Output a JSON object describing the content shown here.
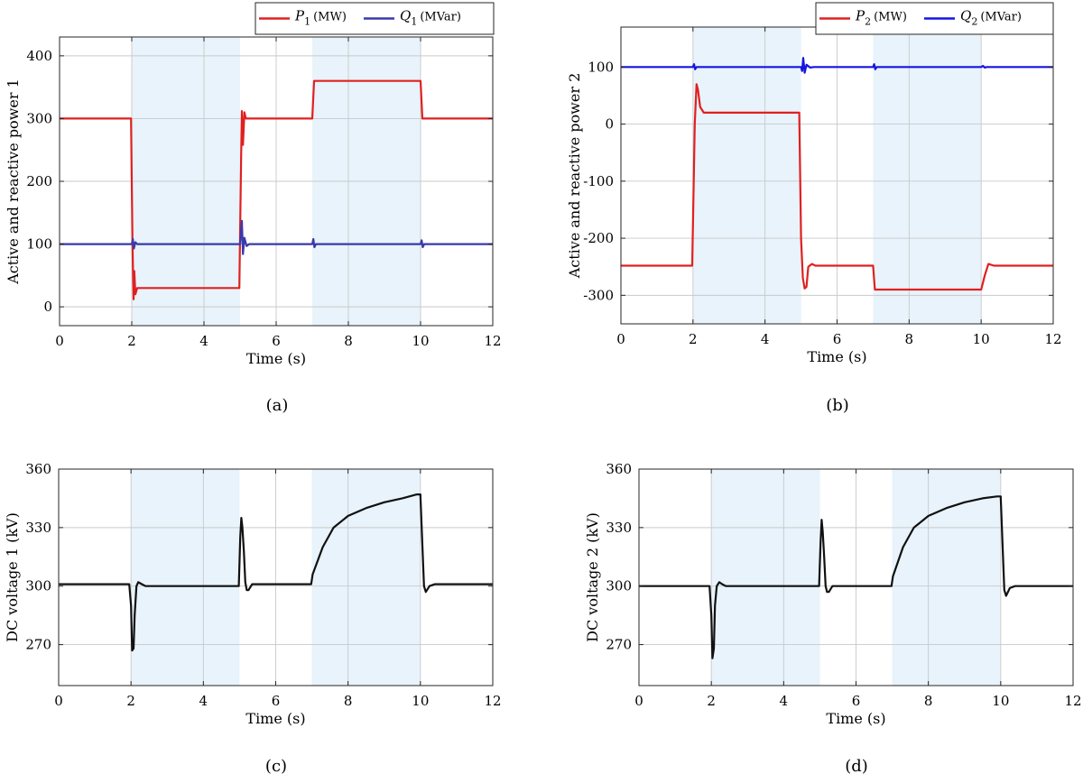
{
  "figure": {
    "captions": [
      "(a)",
      "(b)",
      "(c)",
      "(d)"
    ]
  },
  "chart_data": [
    {
      "id": "a",
      "type": "line",
      "caption": "(a)",
      "xlabel": "Time (s)",
      "ylabel": "Active and reactive power 1",
      "xlim": [
        0,
        12
      ],
      "ylim": [
        -30,
        430
      ],
      "xticks": [
        0,
        2,
        4,
        6,
        8,
        10,
        12
      ],
      "yticks": [
        0,
        100,
        200,
        300,
        400
      ],
      "grid": true,
      "legend": "top-right",
      "shaded_intervals": [
        [
          2,
          5
        ],
        [
          7,
          10
        ]
      ],
      "series": [
        {
          "name": "P1 (MW)",
          "legend_main": "P",
          "legend_sub": "1",
          "legend_unit": "(MW)",
          "color": "#e02020",
          "points": [
            [
              0,
              300
            ],
            [
              1.98,
              300
            ],
            [
              2.02,
              100
            ],
            [
              2.05,
              12
            ],
            [
              2.07,
              57
            ],
            [
              2.1,
              20
            ],
            [
              2.15,
              30
            ],
            [
              4.98,
              30
            ],
            [
              5.03,
              240
            ],
            [
              5.05,
              312
            ],
            [
              5.08,
              258
            ],
            [
              5.12,
              310
            ],
            [
              5.16,
              300
            ],
            [
              7,
              300
            ],
            [
              7.05,
              360
            ],
            [
              10,
              360
            ],
            [
              10.05,
              300
            ],
            [
              12,
              300
            ]
          ]
        },
        {
          "name": "Q1 (MVar)",
          "legend_main": "Q",
          "legend_sub": "1",
          "legend_unit": "(MVar)",
          "color": "#3a3aaa",
          "points": [
            [
              0,
              100
            ],
            [
              2,
              100
            ],
            [
              2.03,
              108
            ],
            [
              2.06,
              93
            ],
            [
              2.1,
              103
            ],
            [
              2.15,
              100
            ],
            [
              5,
              100
            ],
            [
              5.02,
              115
            ],
            [
              5.05,
              137
            ],
            [
              5.08,
              84
            ],
            [
              5.12,
              110
            ],
            [
              5.18,
              97
            ],
            [
              5.25,
              100
            ],
            [
              7,
              100
            ],
            [
              7.03,
              108
            ],
            [
              7.06,
              95
            ],
            [
              7.1,
              100
            ],
            [
              10,
              100
            ],
            [
              10.03,
              106
            ],
            [
              10.06,
              95
            ],
            [
              10.1,
              100
            ],
            [
              12,
              100
            ]
          ]
        }
      ]
    },
    {
      "id": "b",
      "type": "line",
      "caption": "(b)",
      "xlabel": "Time (s)",
      "ylabel": "Active and reactive power 2",
      "xlim": [
        0,
        12
      ],
      "ylim": [
        -350,
        170
      ],
      "xticks": [
        0,
        2,
        4,
        6,
        8,
        10,
        12
      ],
      "yticks": [
        -300,
        -200,
        -100,
        0,
        100
      ],
      "grid": true,
      "legend": "top-right",
      "shaded_intervals": [
        [
          2,
          5
        ],
        [
          7,
          10
        ]
      ],
      "series": [
        {
          "name": "P2 (MW)",
          "legend_main": "P",
          "legend_sub": "2",
          "legend_unit": "(MW)",
          "color": "#e02020",
          "points": [
            [
              0,
              -248
            ],
            [
              1.98,
              -248
            ],
            [
              2.05,
              0
            ],
            [
              2.1,
              70
            ],
            [
              2.14,
              60
            ],
            [
              2.2,
              30
            ],
            [
              2.3,
              20
            ],
            [
              4.95,
              20
            ],
            [
              5,
              -200
            ],
            [
              5.05,
              -270
            ],
            [
              5.1,
              -288
            ],
            [
              5.15,
              -285
            ],
            [
              5.2,
              -250
            ],
            [
              5.3,
              -245
            ],
            [
              5.4,
              -248
            ],
            [
              7,
              -248
            ],
            [
              7.05,
              -290
            ],
            [
              10,
              -290
            ],
            [
              10.1,
              -265
            ],
            [
              10.2,
              -245
            ],
            [
              10.35,
              -248
            ],
            [
              12,
              -248
            ]
          ]
        },
        {
          "name": "Q2 (MVar)",
          "legend_main": "Q",
          "legend_sub": "2",
          "legend_unit": "(MVar)",
          "color": "#1515e0",
          "points": [
            [
              0,
              100
            ],
            [
              2,
              100
            ],
            [
              2.03,
              105
            ],
            [
              2.06,
              96
            ],
            [
              2.1,
              100
            ],
            [
              5,
              100
            ],
            [
              5.03,
              93
            ],
            [
              5.06,
              116
            ],
            [
              5.1,
              90
            ],
            [
              5.15,
              104
            ],
            [
              5.25,
              99
            ],
            [
              5.35,
              100
            ],
            [
              7,
              100
            ],
            [
              7.03,
              105
            ],
            [
              7.06,
              96
            ],
            [
              7.1,
              100
            ],
            [
              10,
              100
            ],
            [
              10.05,
              102
            ],
            [
              10.1,
              99
            ],
            [
              10.15,
              100
            ],
            [
              12,
              100
            ]
          ]
        }
      ]
    },
    {
      "id": "c",
      "type": "line",
      "caption": "(c)",
      "xlabel": "Time (s)",
      "ylabel": "DC voltage 1 (kV)",
      "xlim": [
        0,
        12
      ],
      "ylim": [
        249,
        360
      ],
      "xticks": [
        0,
        2,
        4,
        6,
        8,
        10,
        12
      ],
      "yticks": [
        270,
        300,
        330,
        360
      ],
      "grid": true,
      "legend": "none",
      "shaded_intervals": [
        [
          2,
          5
        ],
        [
          7,
          10
        ]
      ],
      "series": [
        {
          "name": "",
          "color": "#111111",
          "points": [
            [
              0,
              301
            ],
            [
              1.95,
              301
            ],
            [
              2,
              290
            ],
            [
              2.03,
              267
            ],
            [
              2.07,
              268
            ],
            [
              2.1,
              285
            ],
            [
              2.15,
              300
            ],
            [
              2.2,
              302
            ],
            [
              2.3,
              301
            ],
            [
              2.4,
              300
            ],
            [
              4.98,
              300
            ],
            [
              5.02,
              325
            ],
            [
              5.05,
              335
            ],
            [
              5.08,
              330
            ],
            [
              5.12,
              318
            ],
            [
              5.16,
              302
            ],
            [
              5.2,
              298
            ],
            [
              5.25,
              298
            ],
            [
              5.35,
              301
            ],
            [
              6.98,
              301
            ],
            [
              7.02,
              306
            ],
            [
              7.3,
              320
            ],
            [
              7.6,
              330
            ],
            [
              8,
              336
            ],
            [
              8.5,
              340
            ],
            [
              9,
              343
            ],
            [
              9.5,
              345
            ],
            [
              9.9,
              347
            ],
            [
              10,
              347
            ],
            [
              10.1,
              300
            ],
            [
              10.15,
              297
            ],
            [
              10.25,
              300
            ],
            [
              10.4,
              301
            ],
            [
              12,
              301
            ]
          ]
        }
      ]
    },
    {
      "id": "d",
      "type": "line",
      "caption": "(d)",
      "xlabel": "Time (s)",
      "ylabel": "DC voltage 2 (kV)",
      "xlim": [
        0,
        12
      ],
      "ylim": [
        249,
        360
      ],
      "xticks": [
        0,
        2,
        4,
        6,
        8,
        10,
        12
      ],
      "yticks": [
        270,
        300,
        330,
        360
      ],
      "grid": true,
      "legend": "none",
      "shaded_intervals": [
        [
          2,
          5
        ],
        [
          7,
          10
        ]
      ],
      "series": [
        {
          "name": "",
          "color": "#111111",
          "points": [
            [
              0,
              300
            ],
            [
              1.95,
              300
            ],
            [
              2,
              285
            ],
            [
              2.03,
              263
            ],
            [
              2.07,
              268
            ],
            [
              2.1,
              290
            ],
            [
              2.15,
              300
            ],
            [
              2.22,
              302
            ],
            [
              2.3,
              301
            ],
            [
              2.4,
              300
            ],
            [
              4.98,
              300
            ],
            [
              5.02,
              322
            ],
            [
              5.05,
              334
            ],
            [
              5.08,
              328
            ],
            [
              5.12,
              315
            ],
            [
              5.16,
              300
            ],
            [
              5.2,
              297
            ],
            [
              5.25,
              297
            ],
            [
              5.35,
              300
            ],
            [
              6.98,
              300
            ],
            [
              7.02,
              305
            ],
            [
              7.3,
              320
            ],
            [
              7.6,
              330
            ],
            [
              8,
              336
            ],
            [
              8.5,
              340
            ],
            [
              9,
              343
            ],
            [
              9.5,
              345
            ],
            [
              9.9,
              346
            ],
            [
              10,
              346
            ],
            [
              10.1,
              298
            ],
            [
              10.15,
              295
            ],
            [
              10.25,
              299
            ],
            [
              10.4,
              300
            ],
            [
              12,
              300
            ]
          ]
        }
      ]
    }
  ]
}
